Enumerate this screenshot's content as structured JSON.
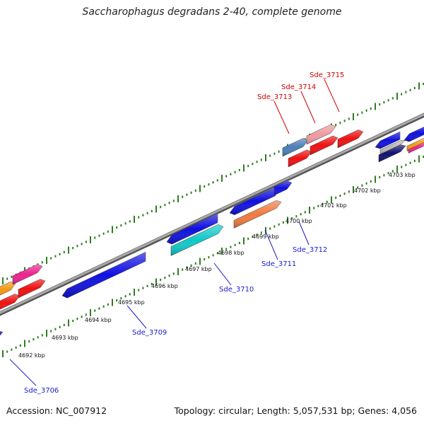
{
  "title": "Saccharophagus degradans 2-40, complete genome",
  "footer": {
    "accession": "Accession: NC_007912",
    "summary": "Topology: circular; Length: 5,057,531 bp; Genes: 4,056"
  },
  "colors": {
    "backbone": "#8a8a8a",
    "tick": "#2f7d20",
    "label_red": "#d40000",
    "label_blue": "#1a1acc"
  },
  "kbp_labels": [
    "4692 kbp",
    "4693 kbp",
    "4694 kbp",
    "4695 kbp",
    "4696 kbp",
    "4697 kbp",
    "4698 kbp",
    "4699 kbp",
    "4700 kbp",
    "4701 kbp",
    "4702 kbp",
    "4703 kbp"
  ],
  "gene_labels": [
    {
      "text": "Sde_3715",
      "color": "red"
    },
    {
      "text": "Sde_3714",
      "color": "red"
    },
    {
      "text": "Sde_3713",
      "color": "red"
    },
    {
      "text": "Sde_3712",
      "color": "blue"
    },
    {
      "text": "Sde_3711",
      "color": "blue"
    },
    {
      "text": "Sde_3710",
      "color": "blue"
    },
    {
      "text": "Sde_3709",
      "color": "blue"
    },
    {
      "text": "Sde_3706",
      "color": "blue"
    }
  ],
  "gene_colors": {
    "blue": "#1010e0",
    "red": "#f01010",
    "pink": "#ee2290",
    "orange": "#f59a10",
    "cyan": "#10c8c8",
    "steelblue": "#4a7fb8",
    "lightpink": "#f09aa0",
    "navy": "#101070",
    "gray": "#b8b8b8",
    "orangestripe": "#f07a40"
  }
}
